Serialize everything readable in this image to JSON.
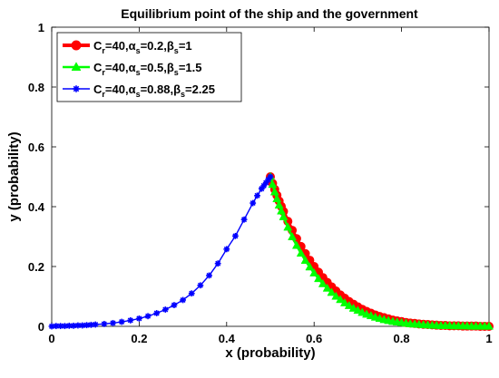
{
  "chart_data": {
    "type": "line",
    "title": "Equilibrium point of the ship and the government",
    "xlabel": "x (probability)",
    "ylabel": "y (probability)",
    "xlim": [
      0,
      1
    ],
    "ylim": [
      0,
      1
    ],
    "xticks": [
      "0",
      "0.2",
      "0.4",
      "0.6",
      "0.8",
      "1"
    ],
    "yticks": [
      "0",
      "0.2",
      "0.4",
      "0.6",
      "0.8",
      "1"
    ],
    "grid": false,
    "legend_position": "top-left",
    "series": [
      {
        "name": "C_r=40,α_s=0.2,β_s=1",
        "legend": {
          "main": "C",
          "sub1": "r",
          "mid1": "=40,α",
          "sub2": "s",
          "mid2": "=0.2,β",
          "sub3": "s",
          "end": "=1"
        },
        "color": "#ff0000",
        "marker": "circle",
        "x": [
          0.5,
          0.505,
          0.51,
          0.515,
          0.52,
          0.525,
          0.53,
          0.54,
          0.55,
          0.56,
          0.57,
          0.58,
          0.59,
          0.6,
          0.61,
          0.62,
          0.63,
          0.64,
          0.65,
          0.66,
          0.67,
          0.68,
          0.69,
          0.7,
          0.71,
          0.72,
          0.73,
          0.74,
          0.75,
          0.76,
          0.77,
          0.78,
          0.79,
          0.8,
          0.81,
          0.82,
          0.83,
          0.84,
          0.85,
          0.86,
          0.87,
          0.88,
          0.89,
          0.9,
          0.91,
          0.92,
          0.93,
          0.94,
          0.95,
          0.96,
          0.97,
          0.98,
          0.99,
          1.0
        ],
        "y": [
          0.5,
          0.478,
          0.458,
          0.438,
          0.419,
          0.401,
          0.384,
          0.351,
          0.321,
          0.293,
          0.267,
          0.243,
          0.221,
          0.2,
          0.181,
          0.163,
          0.147,
          0.132,
          0.118,
          0.105,
          0.094,
          0.083,
          0.074,
          0.065,
          0.057,
          0.05,
          0.044,
          0.038,
          0.033,
          0.029,
          0.025,
          0.021,
          0.018,
          0.016,
          0.013,
          0.011,
          0.01,
          0.008,
          0.007,
          0.006,
          0.005,
          0.004,
          0.003,
          0.003,
          0.002,
          0.002,
          0.002,
          0.001,
          0.001,
          0.001,
          0.001,
          0.0,
          0.0,
          0.0
        ]
      },
      {
        "name": "C_r=40,α_s=0.5,β_s=1.5",
        "legend": {
          "main": "C",
          "sub1": "r",
          "mid1": "=40,α",
          "sub2": "s",
          "mid2": "=0.5,β",
          "sub3": "s",
          "end": "=1.5"
        },
        "color": "#00ff00",
        "marker": "triangle",
        "x": [
          0.5,
          0.505,
          0.51,
          0.515,
          0.52,
          0.525,
          0.53,
          0.54,
          0.55,
          0.56,
          0.57,
          0.58,
          0.59,
          0.6,
          0.61,
          0.62,
          0.63,
          0.64,
          0.65,
          0.66,
          0.67,
          0.68,
          0.69,
          0.7,
          0.71,
          0.72,
          0.73,
          0.74,
          0.75,
          0.76,
          0.77,
          0.78,
          0.79,
          0.8,
          0.81,
          0.82,
          0.83,
          0.84,
          0.85,
          0.86,
          0.87,
          0.88,
          0.89,
          0.9,
          0.91,
          0.92,
          0.93,
          0.94,
          0.95,
          0.96,
          0.97,
          0.98,
          0.99,
          1.0
        ],
        "y": [
          0.5,
          0.474,
          0.449,
          0.426,
          0.405,
          0.385,
          0.366,
          0.331,
          0.299,
          0.27,
          0.244,
          0.22,
          0.198,
          0.178,
          0.159,
          0.142,
          0.127,
          0.113,
          0.1,
          0.089,
          0.078,
          0.069,
          0.06,
          0.053,
          0.046,
          0.04,
          0.035,
          0.03,
          0.026,
          0.022,
          0.019,
          0.016,
          0.014,
          0.012,
          0.01,
          0.008,
          0.007,
          0.006,
          0.005,
          0.004,
          0.003,
          0.003,
          0.002,
          0.002,
          0.002,
          0.001,
          0.001,
          0.001,
          0.001,
          0.0,
          0.0,
          0.0,
          0.0,
          0.0
        ]
      },
      {
        "name": "C_r=40,α_s=0.88,β_s=2.25",
        "legend": {
          "main": "C",
          "sub1": "r",
          "mid1": "=40,α",
          "sub2": "s",
          "mid2": "=0.88,β",
          "sub3": "s",
          "end": "=2.25"
        },
        "color": "#0000ff",
        "marker": "asterisk",
        "x": [
          0.0,
          0.01,
          0.02,
          0.03,
          0.04,
          0.05,
          0.06,
          0.07,
          0.08,
          0.09,
          0.1,
          0.12,
          0.14,
          0.16,
          0.18,
          0.2,
          0.22,
          0.24,
          0.26,
          0.28,
          0.3,
          0.32,
          0.34,
          0.36,
          0.38,
          0.4,
          0.42,
          0.44,
          0.46,
          0.47,
          0.48,
          0.485,
          0.49,
          0.495,
          0.5
        ],
        "y": [
          0.0,
          0.001,
          0.001,
          0.001,
          0.002,
          0.002,
          0.003,
          0.003,
          0.004,
          0.005,
          0.006,
          0.008,
          0.011,
          0.015,
          0.02,
          0.026,
          0.034,
          0.044,
          0.056,
          0.071,
          0.088,
          0.11,
          0.137,
          0.17,
          0.21,
          0.258,
          0.302,
          0.357,
          0.412,
          0.437,
          0.46,
          0.47,
          0.48,
          0.49,
          0.5
        ]
      }
    ]
  }
}
